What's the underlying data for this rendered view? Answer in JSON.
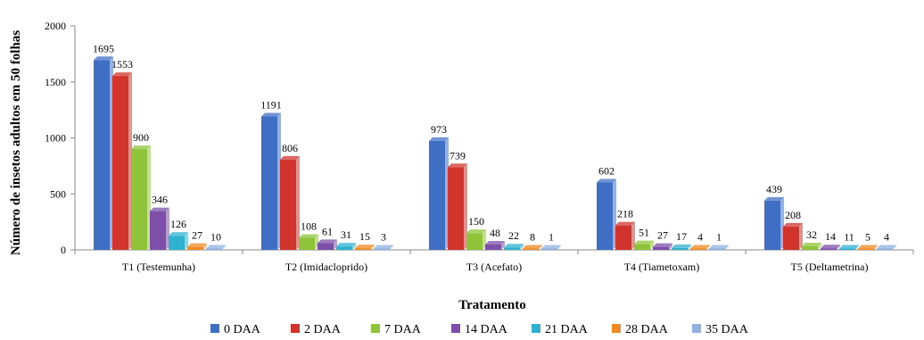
{
  "chart_data": {
    "type": "bar",
    "categories": [
      "T1 (Testemunha)",
      "T2 (Imidacloprido)",
      "T3 (Acefato)",
      "T4 (Tiametoxam)",
      "T5 (Deltametrina)"
    ],
    "series": [
      {
        "name": "0 DAA",
        "color": "#3f6fc4",
        "values": [
          1695,
          1191,
          973,
          602,
          439
        ]
      },
      {
        "name": "2 DAA",
        "color": "#d0342c",
        "values": [
          1553,
          806,
          739,
          218,
          208
        ]
      },
      {
        "name": "7 DAA",
        "color": "#8fc43a",
        "values": [
          900,
          108,
          150,
          51,
          32
        ]
      },
      {
        "name": "14 DAA",
        "color": "#7d4fa8",
        "values": [
          346,
          61,
          48,
          27,
          14
        ]
      },
      {
        "name": "21 DAA",
        "color": "#2fb2cf",
        "values": [
          126,
          31,
          22,
          17,
          11
        ]
      },
      {
        "name": "28 DAA",
        "color": "#f08a24",
        "values": [
          27,
          15,
          8,
          4,
          5
        ]
      },
      {
        "name": "35 DAA",
        "color": "#8fb0e0",
        "values": [
          10,
          3,
          1,
          1,
          4
        ]
      }
    ],
    "data_labels": [
      [
        "1695",
        "1553",
        "900",
        "346",
        "126",
        "27",
        "10"
      ],
      [
        "1191",
        "806",
        "108",
        "61",
        "31",
        "15",
        "3"
      ],
      [
        "973",
        "739",
        "150",
        "48",
        "22",
        "8",
        "1"
      ],
      [
        "602",
        "218",
        "51",
        "27",
        "17",
        "4",
        "1"
      ],
      [
        "439",
        "208",
        "32",
        "14",
        "11",
        "5",
        "4"
      ]
    ],
    "title": "",
    "xlabel": "Tratamento",
    "ylabel": "Número de insetos adultos em 50 folhas",
    "ylim": [
      0,
      2000
    ],
    "yticks": [
      "0",
      "500",
      "1000",
      "1500",
      "2000"
    ],
    "ytick_values": [
      0,
      500,
      1000,
      1500,
      2000
    ],
    "legend_position": "bottom",
    "grid": false
  }
}
